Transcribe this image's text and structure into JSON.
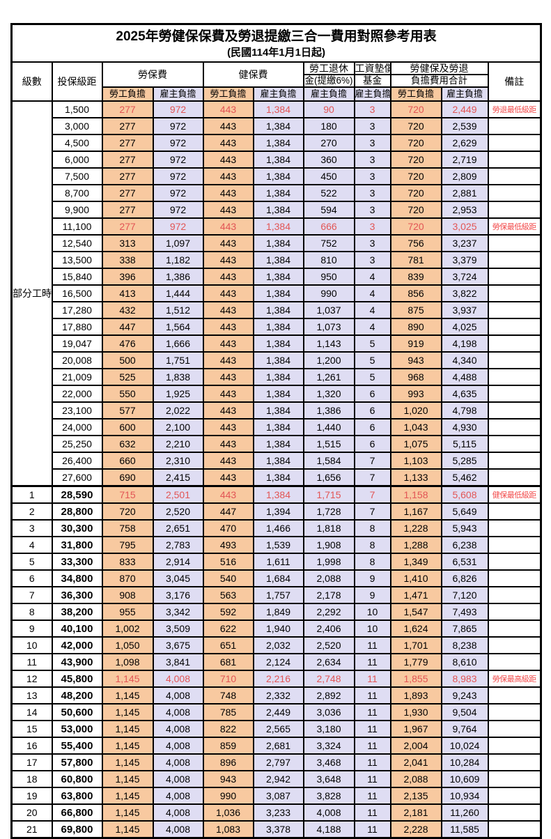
{
  "title": "2025年勞健保保費及勞退提繳三合一費用對照參考用表",
  "subtitle": "(民國114年1月1日起)",
  "colors": {
    "employee_bg": "#f8c9a0",
    "employer_bg": "#dfddf3",
    "highlight_red": "#e25555",
    "remark_red": "#f24b4b",
    "border": "#000000"
  },
  "header": {
    "level": "級數",
    "bracket": "投保級距",
    "labor_fee": "勞保費",
    "health_fee": "健保費",
    "pension_line1": "勞工退休",
    "pension_line2": "金(提繳6%)",
    "wage_fund_line1": "工資墊償",
    "wage_fund_line2": "基金",
    "total_line1": "勞健保及勞退",
    "total_line2": "負擔費用合計",
    "remark": "備註",
    "employee_burden": "勞工負擔",
    "employer_burden": "雇主負擔"
  },
  "part_time_label": "部分工時",
  "rows": [
    {
      "level": "",
      "bracket": "1,500",
      "values": [
        "277",
        "972",
        "443",
        "1,384",
        "90",
        "3",
        "720",
        "2,449"
      ],
      "remark": "勞退最低級距",
      "highlight": true
    },
    {
      "level": "",
      "bracket": "3,000",
      "values": [
        "277",
        "972",
        "443",
        "1,384",
        "180",
        "3",
        "720",
        "2,539"
      ],
      "remark": "",
      "highlight": false
    },
    {
      "level": "",
      "bracket": "4,500",
      "values": [
        "277",
        "972",
        "443",
        "1,384",
        "270",
        "3",
        "720",
        "2,629"
      ],
      "remark": "",
      "highlight": false
    },
    {
      "level": "",
      "bracket": "6,000",
      "values": [
        "277",
        "972",
        "443",
        "1,384",
        "360",
        "3",
        "720",
        "2,719"
      ],
      "remark": "",
      "highlight": false
    },
    {
      "level": "",
      "bracket": "7,500",
      "values": [
        "277",
        "972",
        "443",
        "1,384",
        "450",
        "3",
        "720",
        "2,809"
      ],
      "remark": "",
      "highlight": false
    },
    {
      "level": "",
      "bracket": "8,700",
      "values": [
        "277",
        "972",
        "443",
        "1,384",
        "522",
        "3",
        "720",
        "2,881"
      ],
      "remark": "",
      "highlight": false
    },
    {
      "level": "",
      "bracket": "9,900",
      "values": [
        "277",
        "972",
        "443",
        "1,384",
        "594",
        "3",
        "720",
        "2,953"
      ],
      "remark": "",
      "highlight": false
    },
    {
      "level": "",
      "bracket": "11,100",
      "values": [
        "277",
        "972",
        "443",
        "1,384",
        "666",
        "3",
        "720",
        "3,025"
      ],
      "remark": "勞保最低級距",
      "highlight": true
    },
    {
      "level": "",
      "bracket": "12,540",
      "values": [
        "313",
        "1,097",
        "443",
        "1,384",
        "752",
        "3",
        "756",
        "3,237"
      ],
      "remark": "",
      "highlight": false
    },
    {
      "level": "",
      "bracket": "13,500",
      "values": [
        "338",
        "1,182",
        "443",
        "1,384",
        "810",
        "3",
        "781",
        "3,379"
      ],
      "remark": "",
      "highlight": false
    },
    {
      "level": "",
      "bracket": "15,840",
      "values": [
        "396",
        "1,386",
        "443",
        "1,384",
        "950",
        "4",
        "839",
        "3,724"
      ],
      "remark": "",
      "highlight": false
    },
    {
      "level": "",
      "bracket": "16,500",
      "values": [
        "413",
        "1,444",
        "443",
        "1,384",
        "990",
        "4",
        "856",
        "3,822"
      ],
      "remark": "",
      "highlight": false
    },
    {
      "level": "",
      "bracket": "17,280",
      "values": [
        "432",
        "1,512",
        "443",
        "1,384",
        "1,037",
        "4",
        "875",
        "3,937"
      ],
      "remark": "",
      "highlight": false
    },
    {
      "level": "",
      "bracket": "17,880",
      "values": [
        "447",
        "1,564",
        "443",
        "1,384",
        "1,073",
        "4",
        "890",
        "4,025"
      ],
      "remark": "",
      "highlight": false
    },
    {
      "level": "",
      "bracket": "19,047",
      "values": [
        "476",
        "1,666",
        "443",
        "1,384",
        "1,143",
        "5",
        "919",
        "4,198"
      ],
      "remark": "",
      "highlight": false
    },
    {
      "level": "",
      "bracket": "20,008",
      "values": [
        "500",
        "1,751",
        "443",
        "1,384",
        "1,200",
        "5",
        "943",
        "4,340"
      ],
      "remark": "",
      "highlight": false
    },
    {
      "level": "",
      "bracket": "21,009",
      "values": [
        "525",
        "1,838",
        "443",
        "1,384",
        "1,261",
        "5",
        "968",
        "4,488"
      ],
      "remark": "",
      "highlight": false
    },
    {
      "level": "",
      "bracket": "22,000",
      "values": [
        "550",
        "1,925",
        "443",
        "1,384",
        "1,320",
        "6",
        "993",
        "4,635"
      ],
      "remark": "",
      "highlight": false
    },
    {
      "level": "",
      "bracket": "23,100",
      "values": [
        "577",
        "2,022",
        "443",
        "1,384",
        "1,386",
        "6",
        "1,020",
        "4,798"
      ],
      "remark": "",
      "highlight": false
    },
    {
      "level": "",
      "bracket": "24,000",
      "values": [
        "600",
        "2,100",
        "443",
        "1,384",
        "1,440",
        "6",
        "1,043",
        "4,930"
      ],
      "remark": "",
      "highlight": false
    },
    {
      "level": "",
      "bracket": "25,250",
      "values": [
        "632",
        "2,210",
        "443",
        "1,384",
        "1,515",
        "6",
        "1,075",
        "5,115"
      ],
      "remark": "",
      "highlight": false
    },
    {
      "level": "",
      "bracket": "26,400",
      "values": [
        "660",
        "2,310",
        "443",
        "1,384",
        "1,584",
        "7",
        "1,103",
        "5,285"
      ],
      "remark": "",
      "highlight": false
    },
    {
      "level": "",
      "bracket": "27,600",
      "values": [
        "690",
        "2,415",
        "443",
        "1,384",
        "1,656",
        "7",
        "1,133",
        "5,462"
      ],
      "remark": "",
      "highlight": false
    },
    {
      "level": "1",
      "bracket": "28,590",
      "values": [
        "715",
        "2,501",
        "443",
        "1,384",
        "1,715",
        "7",
        "1,158",
        "5,608"
      ],
      "remark": "健保最低級距",
      "highlight": true
    },
    {
      "level": "2",
      "bracket": "28,800",
      "values": [
        "720",
        "2,520",
        "447",
        "1,394",
        "1,728",
        "7",
        "1,167",
        "5,649"
      ],
      "remark": "",
      "highlight": false
    },
    {
      "level": "3",
      "bracket": "30,300",
      "values": [
        "758",
        "2,651",
        "470",
        "1,466",
        "1,818",
        "8",
        "1,228",
        "5,943"
      ],
      "remark": "",
      "highlight": false
    },
    {
      "level": "4",
      "bracket": "31,800",
      "values": [
        "795",
        "2,783",
        "493",
        "1,539",
        "1,908",
        "8",
        "1,288",
        "6,238"
      ],
      "remark": "",
      "highlight": false
    },
    {
      "level": "5",
      "bracket": "33,300",
      "values": [
        "833",
        "2,914",
        "516",
        "1,611",
        "1,998",
        "8",
        "1,349",
        "6,531"
      ],
      "remark": "",
      "highlight": false
    },
    {
      "level": "6",
      "bracket": "34,800",
      "values": [
        "870",
        "3,045",
        "540",
        "1,684",
        "2,088",
        "9",
        "1,410",
        "6,826"
      ],
      "remark": "",
      "highlight": false
    },
    {
      "level": "7",
      "bracket": "36,300",
      "values": [
        "908",
        "3,176",
        "563",
        "1,757",
        "2,178",
        "9",
        "1,471",
        "7,120"
      ],
      "remark": "",
      "highlight": false
    },
    {
      "level": "8",
      "bracket": "38,200",
      "values": [
        "955",
        "3,342",
        "592",
        "1,849",
        "2,292",
        "10",
        "1,547",
        "7,493"
      ],
      "remark": "",
      "highlight": false
    },
    {
      "level": "9",
      "bracket": "40,100",
      "values": [
        "1,002",
        "3,509",
        "622",
        "1,940",
        "2,406",
        "10",
        "1,624",
        "7,865"
      ],
      "remark": "",
      "highlight": false
    },
    {
      "level": "10",
      "bracket": "42,000",
      "values": [
        "1,050",
        "3,675",
        "651",
        "2,032",
        "2,520",
        "11",
        "1,701",
        "8,238"
      ],
      "remark": "",
      "highlight": false
    },
    {
      "level": "11",
      "bracket": "43,900",
      "values": [
        "1,098",
        "3,841",
        "681",
        "2,124",
        "2,634",
        "11",
        "1,779",
        "8,610"
      ],
      "remark": "",
      "highlight": false
    },
    {
      "level": "12",
      "bracket": "45,800",
      "values": [
        "1,145",
        "4,008",
        "710",
        "2,216",
        "2,748",
        "11",
        "1,855",
        "8,983"
      ],
      "remark": "勞保最高級距",
      "highlight": true
    },
    {
      "level": "13",
      "bracket": "48,200",
      "values": [
        "1,145",
        "4,008",
        "748",
        "2,332",
        "2,892",
        "11",
        "1,893",
        "9,243"
      ],
      "remark": "",
      "highlight": false
    },
    {
      "level": "14",
      "bracket": "50,600",
      "values": [
        "1,145",
        "4,008",
        "785",
        "2,449",
        "3,036",
        "11",
        "1,930",
        "9,504"
      ],
      "remark": "",
      "highlight": false
    },
    {
      "level": "15",
      "bracket": "53,000",
      "values": [
        "1,145",
        "4,008",
        "822",
        "2,565",
        "3,180",
        "11",
        "1,967",
        "9,764"
      ],
      "remark": "",
      "highlight": false
    },
    {
      "level": "16",
      "bracket": "55,400",
      "values": [
        "1,145",
        "4,008",
        "859",
        "2,681",
        "3,324",
        "11",
        "2,004",
        "10,024"
      ],
      "remark": "",
      "highlight": false
    },
    {
      "level": "17",
      "bracket": "57,800",
      "values": [
        "1,145",
        "4,008",
        "896",
        "2,797",
        "3,468",
        "11",
        "2,041",
        "10,284"
      ],
      "remark": "",
      "highlight": false
    },
    {
      "level": "18",
      "bracket": "60,800",
      "values": [
        "1,145",
        "4,008",
        "943",
        "2,942",
        "3,648",
        "11",
        "2,088",
        "10,609"
      ],
      "remark": "",
      "highlight": false
    },
    {
      "level": "19",
      "bracket": "63,800",
      "values": [
        "1,145",
        "4,008",
        "990",
        "3,087",
        "3,828",
        "11",
        "2,135",
        "10,934"
      ],
      "remark": "",
      "highlight": false
    },
    {
      "level": "20",
      "bracket": "66,800",
      "values": [
        "1,145",
        "4,008",
        "1,036",
        "3,233",
        "4,008",
        "11",
        "2,181",
        "11,260"
      ],
      "remark": "",
      "highlight": false
    },
    {
      "level": "21",
      "bracket": "69,800",
      "values": [
        "1,145",
        "4,008",
        "1,083",
        "3,378",
        "4,188",
        "11",
        "2,228",
        "11,585"
      ],
      "remark": "",
      "highlight": false
    }
  ]
}
